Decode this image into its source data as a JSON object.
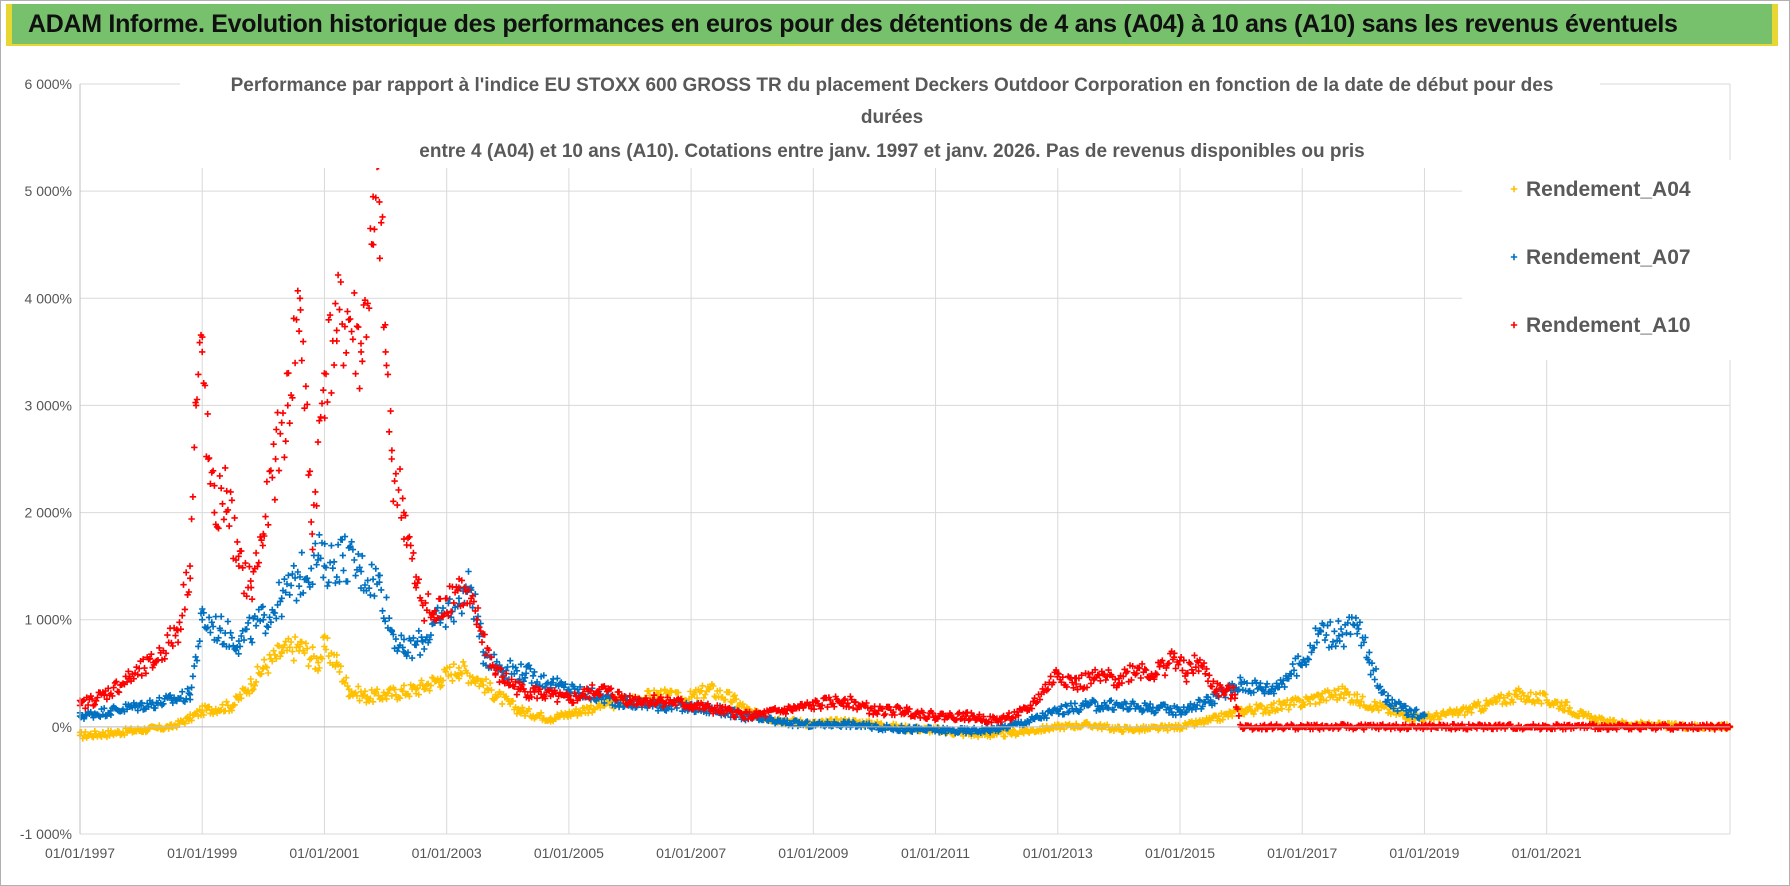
{
  "banner": {
    "title": "ADAM Informe. Evolution historique des performances en euros pour des détentions de 4 ans (A04) à 10 ans (A10) sans les revenus éventuels"
  },
  "colors": {
    "banner": "#77c16c",
    "accent": "#e8d633",
    "A04": "#FFC000",
    "A07": "#0070C0",
    "A10": "#FF0000"
  },
  "chart_data": {
    "type": "scatter",
    "title_lines": [
      "Performance par rapport à l'indice EU STOXX 600 GROSS TR  du placement Deckers Outdoor Corporation en fonction de la date de début pour des",
      "durées",
      "entre 4 (A04) et 10 ans (A10). Cotations entre janv. 1997 et janv. 2026. Pas de revenus disponibles ou pris"
    ],
    "ylabel": "",
    "xlabel": "",
    "ylim": [
      -1000,
      6000
    ],
    "xlim": [
      1997.0,
      2024.0
    ],
    "y_ticks": [
      -1000,
      0,
      1000,
      2000,
      3000,
      4000,
      5000,
      6000
    ],
    "y_tick_labels": [
      "-1 000%",
      "0%",
      "1 000%",
      "2 000%",
      "3 000%",
      "4 000%",
      "5 000%",
      "6 000%"
    ],
    "x_ticks": [
      1997,
      1999,
      2001,
      2003,
      2005,
      2007,
      2009,
      2011,
      2013,
      2015,
      2017,
      2019,
      2021
    ],
    "x_tick_labels": [
      "01/01/1997",
      "01/01/1999",
      "01/01/2001",
      "01/01/2003",
      "01/01/2005",
      "01/01/2007",
      "01/01/2009",
      "01/01/2011",
      "01/01/2013",
      "01/01/2015",
      "01/01/2017",
      "01/01/2019",
      "01/01/2021"
    ],
    "legend_position": "top-right",
    "series": [
      {
        "name": "Rendement_A04",
        "color": "#FFC000",
        "x": [
          1997.0,
          1997.5,
          1998.0,
          1998.5,
          1998.8,
          1999.0,
          1999.5,
          1999.8,
          2000.0,
          2000.3,
          2000.6,
          2000.9,
          2001.0,
          2001.2,
          2001.4,
          2001.7,
          2002.0,
          2002.5,
          2002.9,
          2003.2,
          2003.5,
          2003.8,
          2004.2,
          2004.7,
          2005.0,
          2005.5,
          2006.0,
          2006.5,
          2006.9,
          2007.3,
          2007.7,
          2008.0,
          2008.5,
          2009.0,
          2009.5,
          2010.0,
          2010.5,
          2011.0,
          2011.5,
          2012.0,
          2012.5,
          2013.0,
          2013.5,
          2014.0,
          2014.5,
          2015.0,
          2015.5,
          2016.0,
          2016.5,
          2017.0,
          2017.3,
          2017.7,
          2017.9,
          2018.2,
          2018.6,
          2019.0,
          2019.5,
          2020.0,
          2020.5,
          2021.0,
          2021.3,
          2021.6,
          2022.0,
          2022.5,
          2023.0,
          2024.0
        ],
        "values": [
          -80,
          -60,
          -30,
          0,
          80,
          150,
          200,
          400,
          550,
          700,
          750,
          600,
          750,
          600,
          350,
          280,
          300,
          350,
          450,
          550,
          450,
          300,
          150,
          80,
          120,
          200,
          250,
          300,
          250,
          350,
          250,
          120,
          60,
          30,
          50,
          30,
          -10,
          -30,
          -60,
          -70,
          -40,
          0,
          20,
          -20,
          -20,
          0,
          60,
          150,
          180,
          230,
          280,
          320,
          250,
          200,
          120,
          80,
          130,
          200,
          300,
          250,
          200,
          100,
          40,
          20,
          10,
          0
        ]
      },
      {
        "name": "Rendement_A07",
        "color": "#0070C0",
        "x": [
          1997.0,
          1997.5,
          1998.0,
          1998.5,
          1998.8,
          1999.0,
          1999.3,
          1999.6,
          2000.0,
          2000.3,
          2000.6,
          2000.9,
          2001.0,
          2001.3,
          2001.6,
          2001.9,
          2002.1,
          2002.3,
          2002.6,
          2002.9,
          2003.2,
          2003.4,
          2003.6,
          2003.9,
          2004.3,
          2004.7,
          2005.0,
          2005.5,
          2006.0,
          2006.5,
          2007.0,
          2007.5,
          2008.0,
          2008.5,
          2009.0,
          2009.5,
          2010.0,
          2010.5,
          2011.0,
          2011.5,
          2012.0,
          2012.5,
          2013.0,
          2013.5,
          2014.0,
          2014.5,
          2015.0,
          2015.5,
          2016.0,
          2016.5,
          2017.0,
          2017.3,
          2017.6,
          2017.9,
          2018.1,
          2018.4,
          2018.7,
          2019.0
        ],
        "values": [
          100,
          150,
          200,
          250,
          300,
          1000,
          900,
          800,
          1000,
          1200,
          1400,
          1600,
          1500,
          1600,
          1450,
          1350,
          900,
          700,
          800,
          1000,
          1200,
          1300,
          700,
          550,
          500,
          400,
          350,
          280,
          220,
          200,
          180,
          150,
          80,
          40,
          20,
          30,
          0,
          -20,
          -30,
          -40,
          -20,
          50,
          150,
          200,
          200,
          180,
          150,
          250,
          400,
          350,
          600,
          900,
          850,
          950,
          600,
          250,
          150,
          100
        ]
      },
      {
        "name": "Rendement_A10",
        "color": "#FF0000",
        "x": [
          1997.0,
          1997.4,
          1997.8,
          1998.2,
          1998.6,
          1998.8,
          1998.9,
          1999.0,
          1999.1,
          1999.2,
          1999.4,
          1999.6,
          1999.8,
          2000.0,
          2000.2,
          2000.4,
          2000.6,
          2000.8,
          2001.0,
          2001.2,
          2001.4,
          2001.6,
          2001.8,
          2001.9,
          2002.0,
          2002.1,
          2002.3,
          2002.5,
          2002.8,
          2003.0,
          2003.2,
          2003.5,
          2003.8,
          2004.2,
          2004.6,
          2005.0,
          2005.5,
          2006.0,
          2006.5,
          2007.0,
          2007.5,
          2008.0,
          2008.5,
          2009.0,
          2009.5,
          2010.0,
          2010.5,
          2011.0,
          2011.5,
          2012.0,
          2012.5,
          2013.0,
          2013.3,
          2013.6,
          2014.0,
          2014.3,
          2014.6,
          2014.9,
          2015.1,
          2015.3,
          2015.6,
          2015.9,
          2016.0,
          2017.0,
          2018.0,
          2019.0,
          2020.0,
          2021.0,
          2022.0,
          2023.0,
          2024.0
        ],
        "values": [
          200,
          300,
          450,
          600,
          900,
          1500,
          3000,
          3500,
          2500,
          2000,
          2200,
          1500,
          1300,
          1800,
          2500,
          3000,
          4000,
          1800,
          3300,
          3700,
          3800,
          3500,
          4500,
          4900,
          3500,
          2500,
          2000,
          1300,
          1000,
          1200,
          1300,
          1000,
          500,
          350,
          300,
          250,
          350,
          250,
          250,
          200,
          150,
          100,
          150,
          200,
          250,
          150,
          150,
          100,
          100,
          60,
          150,
          500,
          400,
          450,
          450,
          550,
          500,
          650,
          500,
          600,
          350,
          300,
          0,
          0,
          0,
          0,
          0,
          0,
          0,
          0,
          0
        ]
      }
    ]
  }
}
